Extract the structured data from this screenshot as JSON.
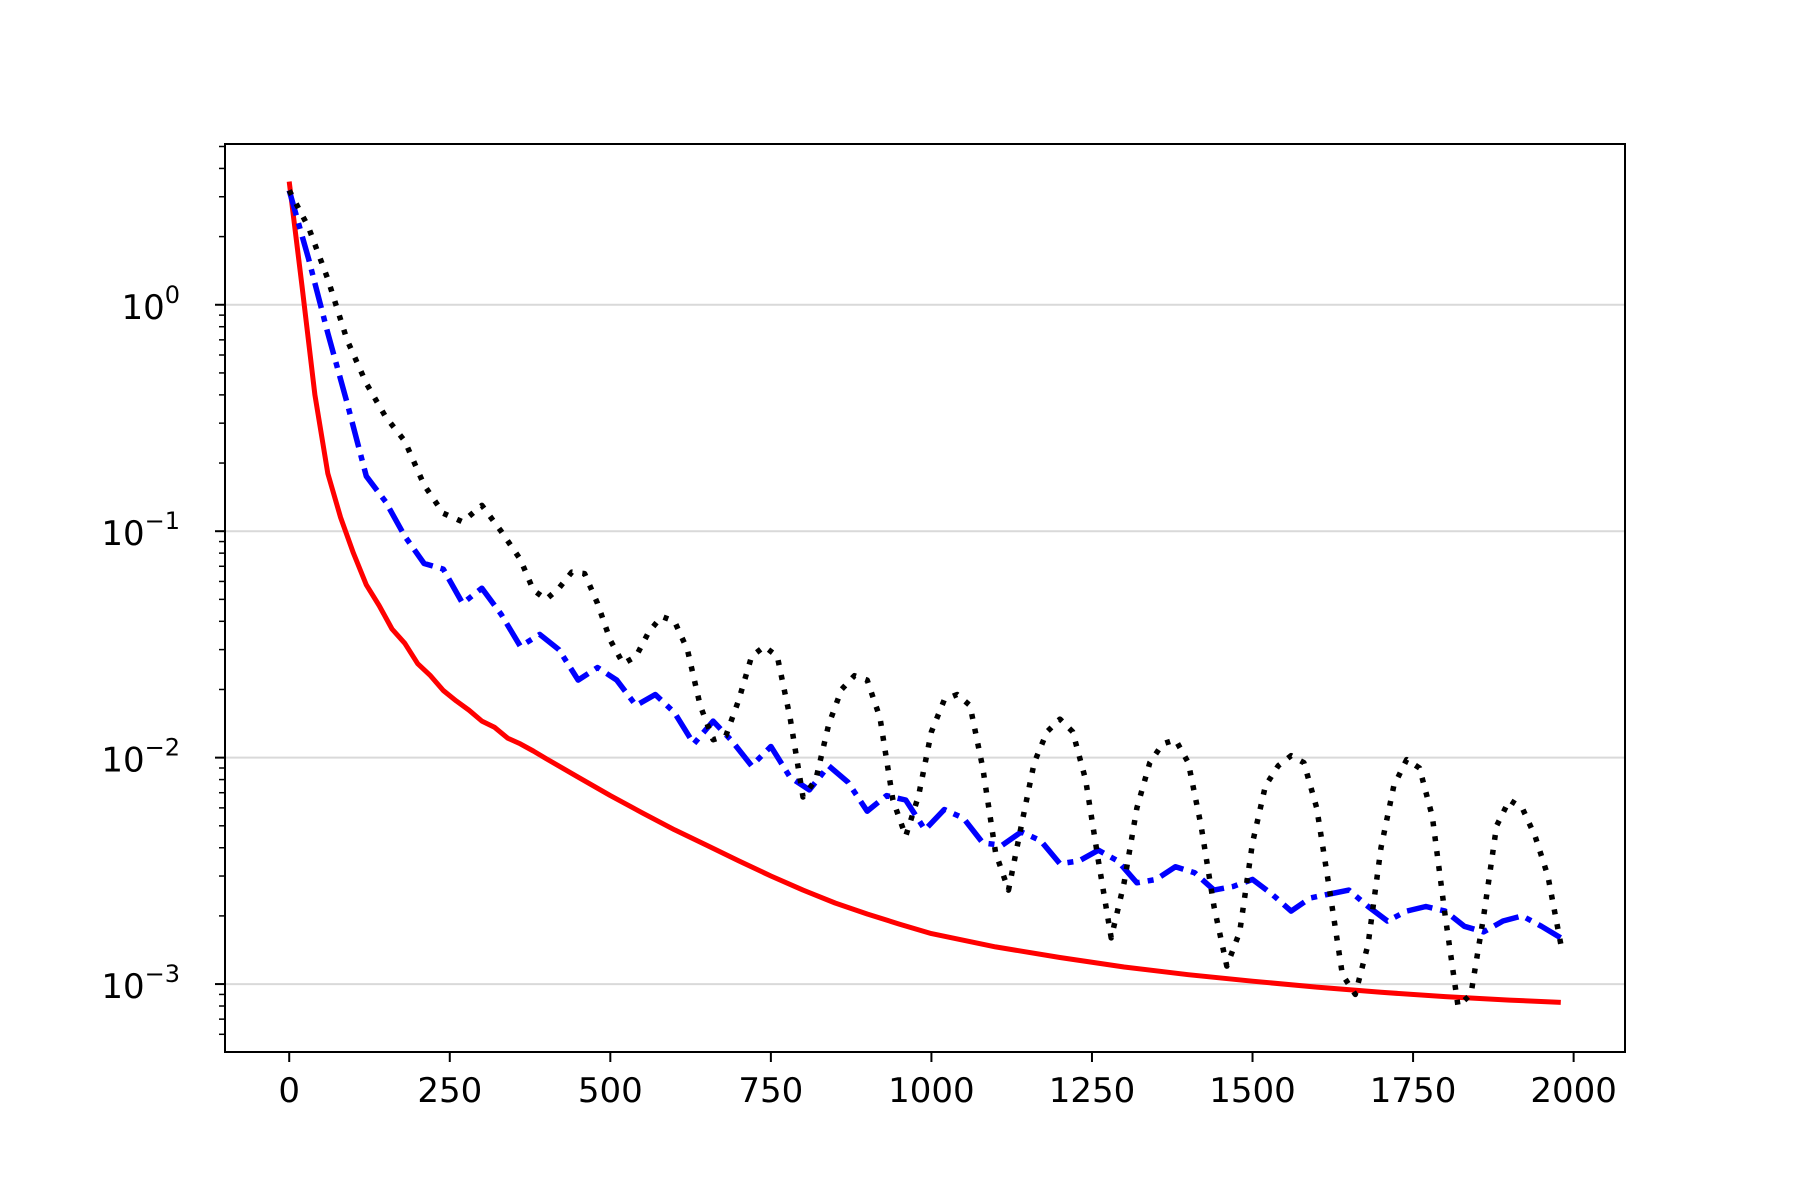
{
  "chart_data": {
    "type": "line",
    "title": "",
    "xlabel": "",
    "ylabel": "",
    "xlim": [
      -100,
      2080
    ],
    "ylim_log10": [
      -3.3,
      0.71
    ],
    "yscale": "log",
    "grid": "horizontal major lines",
    "legend": "none",
    "x_ticks": [
      {
        "value": 0,
        "label": "0"
      },
      {
        "value": 250,
        "label": "250"
      },
      {
        "value": 500,
        "label": "500"
      },
      {
        "value": 750,
        "label": "750"
      },
      {
        "value": 1000,
        "label": "1000"
      },
      {
        "value": 1250,
        "label": "1250"
      },
      {
        "value": 1500,
        "label": "1500"
      },
      {
        "value": 1750,
        "label": "1750"
      },
      {
        "value": 2000,
        "label": "2000"
      }
    ],
    "y_ticks": [
      {
        "value": 1,
        "base": "10",
        "exponent": "0"
      },
      {
        "value": 0.1,
        "base": "10",
        "exponent": "−1"
      },
      {
        "value": 0.01,
        "base": "10",
        "exponent": "−2"
      },
      {
        "value": 0.001,
        "base": "10",
        "exponent": "−3"
      }
    ],
    "series": [
      {
        "color": "#ff0000",
        "style": "solid",
        "x": [
          0,
          20,
          40,
          60,
          80,
          100,
          120,
          140,
          160,
          180,
          200,
          220,
          240,
          260,
          280,
          300,
          320,
          340,
          360,
          380,
          400,
          450,
          500,
          550,
          600,
          650,
          700,
          750,
          800,
          850,
          900,
          950,
          1000,
          1100,
          1200,
          1300,
          1400,
          1500,
          1600,
          1700,
          1800,
          1900,
          1980
        ],
        "y": [
          3.5,
          1.2,
          0.4,
          0.18,
          0.115,
          0.08,
          0.058,
          0.047,
          0.037,
          0.032,
          0.026,
          0.023,
          0.0198,
          0.0178,
          0.0162,
          0.0145,
          0.0136,
          0.0122,
          0.0115,
          0.0107,
          0.0099,
          0.0082,
          0.0068,
          0.0057,
          0.0048,
          0.0041,
          0.0035,
          0.003,
          0.0026,
          0.00228,
          0.00204,
          0.00184,
          0.00167,
          0.00146,
          0.00131,
          0.00119,
          0.0011,
          0.00103,
          0.00097,
          0.00092,
          0.00088,
          0.00085,
          0.00083
        ]
      },
      {
        "color": "#0000ff",
        "style": "dashdot",
        "x": [
          0,
          30,
          60,
          90,
          120,
          150,
          180,
          210,
          240,
          270,
          300,
          330,
          360,
          390,
          420,
          450,
          480,
          510,
          540,
          570,
          600,
          630,
          660,
          690,
          720,
          750,
          780,
          810,
          840,
          870,
          900,
          930,
          960,
          990,
          1020,
          1050,
          1080,
          1110,
          1140,
          1170,
          1200,
          1230,
          1260,
          1290,
          1320,
          1350,
          1380,
          1410,
          1440,
          1470,
          1500,
          1530,
          1560,
          1590,
          1620,
          1650,
          1680,
          1710,
          1740,
          1770,
          1800,
          1830,
          1860,
          1890,
          1920,
          1950,
          1980
        ],
        "y": [
          3.2,
          1.6,
          0.75,
          0.37,
          0.175,
          0.135,
          0.095,
          0.072,
          0.068,
          0.048,
          0.056,
          0.043,
          0.031,
          0.035,
          0.03,
          0.022,
          0.025,
          0.022,
          0.017,
          0.019,
          0.0158,
          0.0115,
          0.0145,
          0.0118,
          0.0092,
          0.0112,
          0.0082,
          0.0072,
          0.0092,
          0.0078,
          0.0058,
          0.0068,
          0.0065,
          0.0048,
          0.0059,
          0.0054,
          0.0042,
          0.0041,
          0.0047,
          0.0043,
          0.0034,
          0.0035,
          0.0039,
          0.0035,
          0.0028,
          0.0029,
          0.0033,
          0.0031,
          0.0026,
          0.0027,
          0.0029,
          0.0025,
          0.0021,
          0.0024,
          0.0025,
          0.0026,
          0.0022,
          0.0019,
          0.0021,
          0.0022,
          0.0021,
          0.0018,
          0.0017,
          0.0019,
          0.002,
          0.0018,
          0.0016
        ]
      },
      {
        "color": "#000000",
        "style": "dotted",
        "x": [
          0,
          30,
          60,
          90,
          120,
          150,
          180,
          210,
          240,
          270,
          300,
          330,
          360,
          380,
          400,
          420,
          440,
          460,
          480,
          500,
          520,
          540,
          560,
          580,
          600,
          620,
          640,
          660,
          680,
          700,
          720,
          740,
          760,
          780,
          800,
          820,
          840,
          860,
          880,
          900,
          920,
          940,
          960,
          980,
          1000,
          1020,
          1040,
          1060,
          1080,
          1100,
          1120,
          1140,
          1160,
          1180,
          1200,
          1220,
          1240,
          1260,
          1280,
          1300,
          1320,
          1340,
          1360,
          1380,
          1400,
          1420,
          1440,
          1460,
          1480,
          1500,
          1520,
          1540,
          1560,
          1580,
          1600,
          1620,
          1640,
          1660,
          1680,
          1700,
          1720,
          1740,
          1760,
          1780,
          1800,
          1820,
          1840,
          1860,
          1880,
          1900,
          1920,
          1940,
          1960,
          1980
        ],
        "y": [
          3.2,
          2.2,
          1.3,
          0.7,
          0.45,
          0.32,
          0.25,
          0.16,
          0.12,
          0.11,
          0.13,
          0.1,
          0.075,
          0.055,
          0.05,
          0.056,
          0.066,
          0.065,
          0.048,
          0.033,
          0.026,
          0.028,
          0.036,
          0.042,
          0.04,
          0.03,
          0.017,
          0.012,
          0.0125,
          0.018,
          0.028,
          0.031,
          0.028,
          0.015,
          0.0067,
          0.008,
          0.014,
          0.02,
          0.023,
          0.022,
          0.015,
          0.0065,
          0.0045,
          0.0068,
          0.013,
          0.018,
          0.019,
          0.017,
          0.009,
          0.0038,
          0.0026,
          0.005,
          0.0095,
          0.013,
          0.0148,
          0.013,
          0.008,
          0.0035,
          0.0016,
          0.0028,
          0.006,
          0.0095,
          0.0115,
          0.012,
          0.0095,
          0.005,
          0.0022,
          0.0012,
          0.0017,
          0.0042,
          0.0075,
          0.0092,
          0.0102,
          0.0095,
          0.006,
          0.0026,
          0.0011,
          0.0009,
          0.0015,
          0.004,
          0.0075,
          0.0098,
          0.009,
          0.0055,
          0.002,
          0.0008,
          0.0009,
          0.002,
          0.005,
          0.0065,
          0.006,
          0.0045,
          0.003,
          0.0015
        ]
      }
    ]
  }
}
